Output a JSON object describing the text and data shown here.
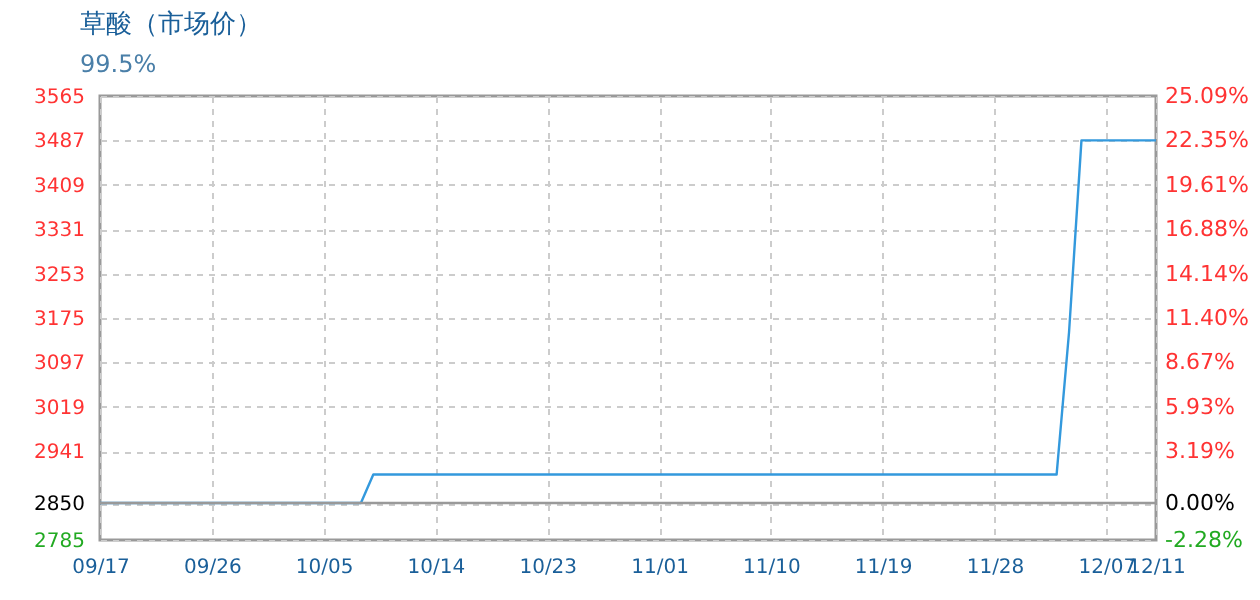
{
  "chart_data": {
    "type": "line",
    "title": "草酸（市场价）",
    "subtitle": "99.5%",
    "x": [
      "--09-17",
      "--10-08",
      "--10-09",
      "--12-03",
      "--12-04",
      "--12-05",
      "--12-11"
    ],
    "series": [
      {
        "color": "#3399dd",
        "values": [
          2850,
          2850,
          2900,
          2900,
          3150,
          3487,
          3487
        ]
      }
    ],
    "xlim": [
      "--09-17",
      "--12-11"
    ],
    "xticks": [
      {
        "value": "--09-17",
        "label": "09/17"
      },
      {
        "value": "--09-26",
        "label": "09/26"
      },
      {
        "value": "--10-05",
        "label": "10/05"
      },
      {
        "value": "--10-14",
        "label": "10/14"
      },
      {
        "value": "--10-23",
        "label": "10/23"
      },
      {
        "value": "--11-01",
        "label": "11/01"
      },
      {
        "value": "--11-10",
        "label": "11/10"
      },
      {
        "value": "--11-19",
        "label": "11/19"
      },
      {
        "value": "--11-28",
        "label": "11/28"
      },
      {
        "value": "--12-07",
        "label": "12/07"
      },
      {
        "value": "--12-11",
        "label": "12/11"
      }
    ],
    "ylim": [
      2785,
      3565
    ],
    "yticks": [
      2785,
      2850,
      2941,
      3019,
      3097,
      3175,
      3253,
      3331,
      3409,
      3487,
      3565
    ],
    "y2lim": [
      -2.28,
      25.09
    ],
    "y2ticks": [
      {
        "value": -2.28,
        "label": "-2.28%"
      },
      {
        "value": 0,
        "label": "0.00%"
      },
      {
        "value": 3.19,
        "label": "3.19%"
      },
      {
        "value": 5.93,
        "label": "5.93%"
      },
      {
        "value": 8.67,
        "label": "8.67%"
      },
      {
        "value": 11.4,
        "label": "11.40%"
      },
      {
        "value": 14.14,
        "label": "14.14%"
      },
      {
        "value": 16.88,
        "label": "16.88%"
      },
      {
        "value": 19.61,
        "label": "19.61%"
      },
      {
        "value": 22.35,
        "label": "22.35%"
      },
      {
        "value": 25.09,
        "label": "25.09%"
      }
    ],
    "ref_lines": [
      {
        "axis": "y",
        "value": 2850,
        "color": "#999999"
      }
    ],
    "grid": true,
    "marker": "none",
    "line_style": "solid"
  }
}
